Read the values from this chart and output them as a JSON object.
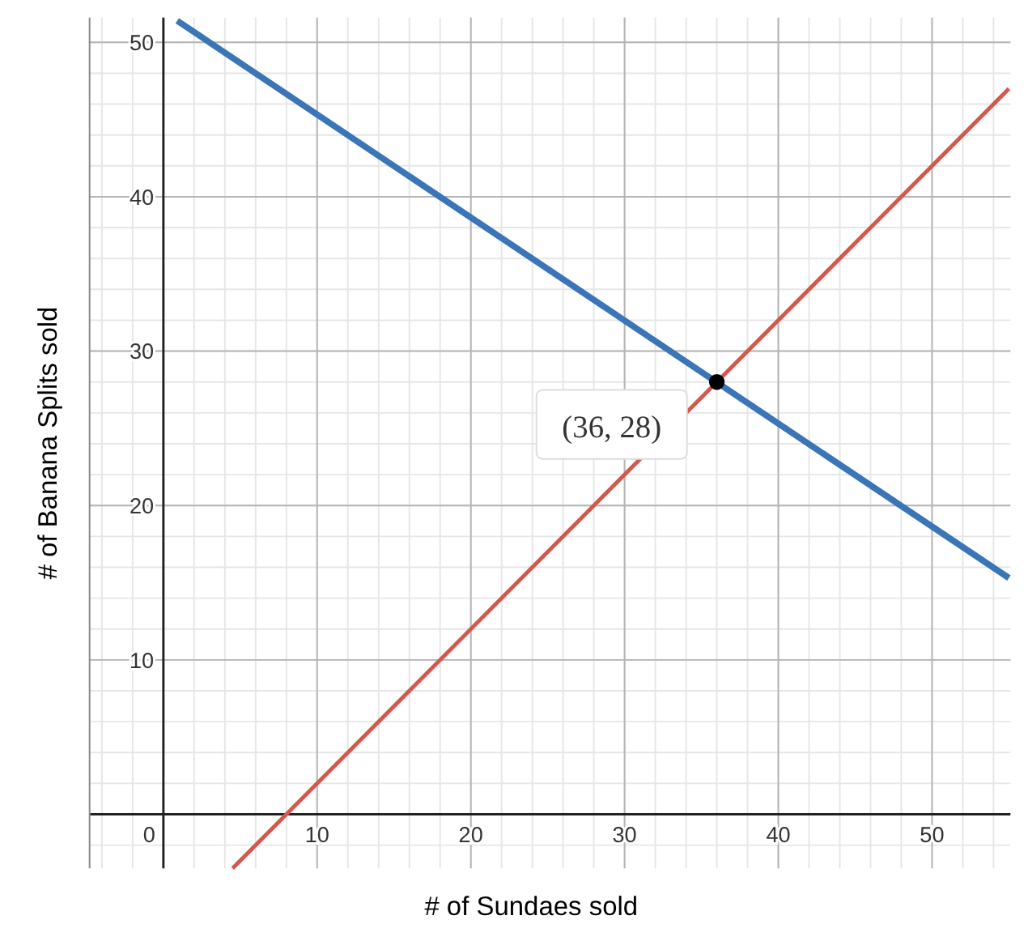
{
  "chart_data": {
    "type": "line",
    "xlabel": "# of Sundaes sold",
    "ylabel": "# of Banana Splits sold",
    "xlim": [
      -4.8,
      55.1
    ],
    "ylim": [
      -3.5,
      51.6
    ],
    "xticks": [
      0,
      10,
      20,
      30,
      40,
      50
    ],
    "yticks": [
      10,
      20,
      30,
      40,
      50
    ],
    "grid": true,
    "marker": "none",
    "line_style": "solid",
    "series": [
      {
        "color": "#3a75b8",
        "x": [
          0.9,
          55
        ],
        "values": [
          51.4,
          15.3
        ]
      },
      {
        "color": "#d4574e",
        "x": [
          4.5,
          55
        ],
        "values": [
          -3.5,
          47
        ]
      },
      {
        "type": "scatter",
        "color": "#000000",
        "x": [
          36
        ],
        "values": [
          28
        ],
        "marker": "circle"
      }
    ],
    "annotations": [
      {
        "text": "(36, 28)",
        "x": 36,
        "y": 28
      }
    ]
  }
}
